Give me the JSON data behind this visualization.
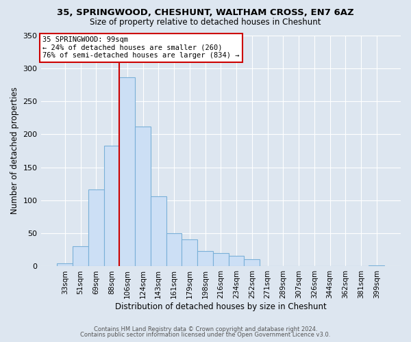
{
  "title_line1": "35, SPRINGWOOD, CHESHUNT, WALTHAM CROSS, EN7 6AZ",
  "title_line2": "Size of property relative to detached houses in Cheshunt",
  "xlabel": "Distribution of detached houses by size in Cheshunt",
  "ylabel": "Number of detached properties",
  "bar_labels": [
    "33sqm",
    "51sqm",
    "69sqm",
    "88sqm",
    "106sqm",
    "124sqm",
    "143sqm",
    "161sqm",
    "179sqm",
    "198sqm",
    "216sqm",
    "234sqm",
    "252sqm",
    "271sqm",
    "289sqm",
    "307sqm",
    "326sqm",
    "344sqm",
    "362sqm",
    "381sqm",
    "399sqm"
  ],
  "bar_values": [
    5,
    30,
    116,
    183,
    286,
    212,
    106,
    50,
    41,
    23,
    20,
    16,
    11,
    0,
    0,
    0,
    0,
    0,
    0,
    0,
    2
  ],
  "bar_color": "#ccdff5",
  "bar_edge_color": "#7ab0d8",
  "vline_color": "#cc0000",
  "annotation_title": "35 SPRINGWOOD: 99sqm",
  "annotation_line2": "← 24% of detached houses are smaller (260)",
  "annotation_line3": "76% of semi-detached houses are larger (834) →",
  "annotation_box_color": "white",
  "annotation_box_edge": "#cc0000",
  "ylim": [
    0,
    350
  ],
  "yticks": [
    0,
    50,
    100,
    150,
    200,
    250,
    300,
    350
  ],
  "background_color": "#dde6f0",
  "plot_bg_color": "#dde6f0",
  "grid_color": "white",
  "footer_line1": "Contains HM Land Registry data © Crown copyright and database right 2024.",
  "footer_line2": "Contains public sector information licensed under the Open Government Licence v3.0."
}
